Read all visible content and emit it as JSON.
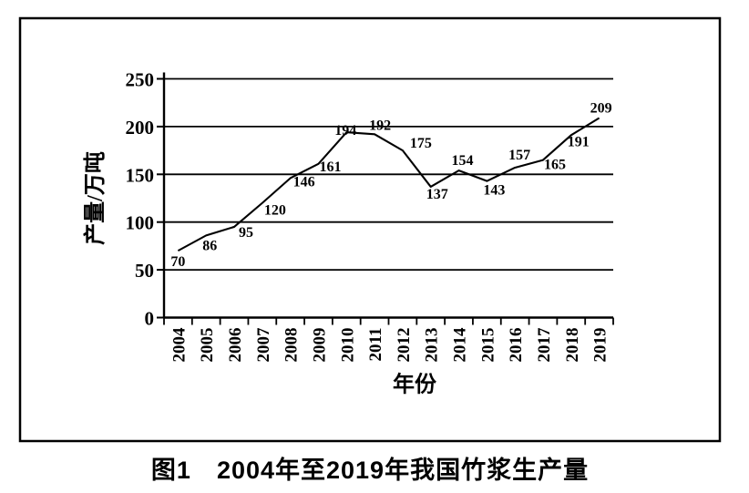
{
  "figure": {
    "caption": "图1　2004年至2019年我国竹浆生产量"
  },
  "chart_data": {
    "type": "line",
    "title": "",
    "xlabel": "年份",
    "ylabel": "产量/万吨",
    "categories": [
      "2004",
      "2005",
      "2006",
      "2007",
      "2008",
      "2009",
      "2010",
      "2011",
      "2012",
      "2013",
      "2014",
      "2015",
      "2016",
      "2017",
      "2018",
      "2019"
    ],
    "values": [
      70,
      86,
      95,
      120,
      146,
      161,
      194,
      192,
      175,
      137,
      154,
      143,
      157,
      165,
      191,
      209
    ],
    "ylim": [
      0,
      250
    ],
    "yticks": [
      0,
      50,
      100,
      150,
      200,
      250
    ],
    "grid": "horizontal",
    "legend": "none",
    "data_labels": true,
    "line_color": "#000000",
    "text_color": "#000000",
    "background": "#ffffff"
  }
}
